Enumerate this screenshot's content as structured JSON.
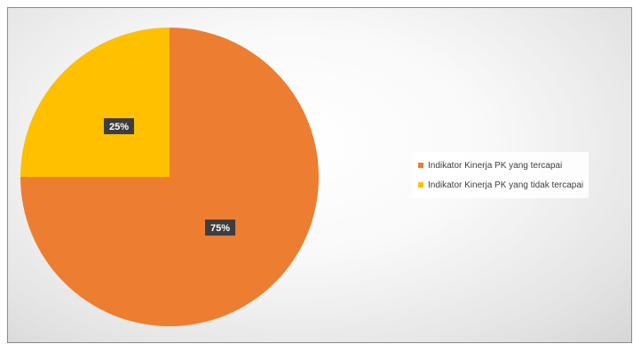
{
  "chart_data": {
    "type": "pie",
    "title": "",
    "categories": [
      "Indikator Kinerja PK yang tercapai",
      "Indikator Kinerja PK yang tidak tercapai"
    ],
    "values": [
      75,
      25
    ],
    "labels": [
      "75%",
      "25%"
    ],
    "colors": [
      "#ED7D31",
      "#FFC000"
    ],
    "legend_position": "right"
  }
}
